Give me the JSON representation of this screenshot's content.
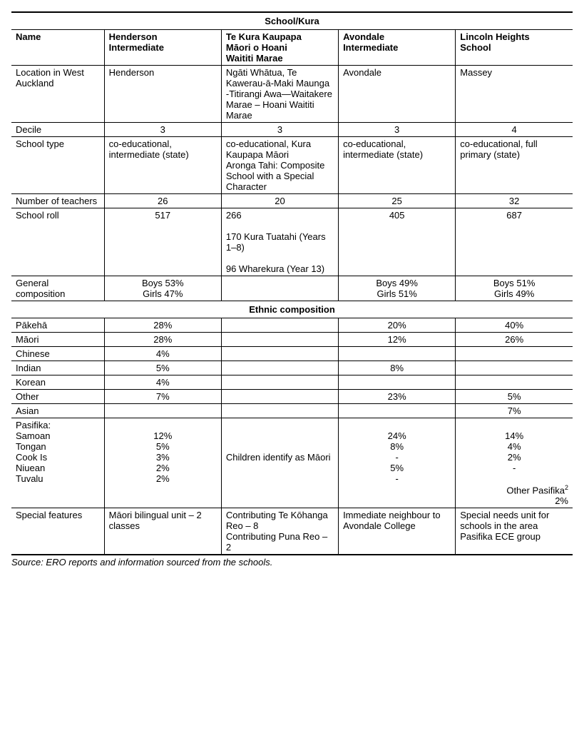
{
  "tableTitle": "School/Kura",
  "headers": {
    "name": "Name",
    "cols": [
      "Henderson\nIntermediate",
      "Te Kura Kaupapa\nMāori o Hoani\nWaititi Marae",
      "Avondale\nIntermediate",
      "Lincoln Heights\nSchool"
    ]
  },
  "rows": {
    "location_label": "Location in West Auckland",
    "location": [
      "Henderson",
      "Ngāti Whātua, Te Kawerau-ā-Maki Maunga  -Titirangi Awa—Waitakere Marae – Hoani Waititi Marae",
      "Avondale",
      "Massey"
    ],
    "decile_label": "Decile",
    "decile": [
      "3",
      "3",
      "3",
      "4"
    ],
    "schooltype_label": "School type",
    "schooltype": [
      "co-educational, intermediate (state)",
      "co-educational, Kura Kaupapa Māori\nAronga Tahi: Composite School with a Special Character",
      "co-educational, intermediate (state)",
      "co-educational, full primary (state)"
    ],
    "teachers_label": "Number of teachers",
    "teachers": [
      "26",
      "20",
      "25",
      "32"
    ],
    "roll_label": "School roll",
    "roll": [
      "517",
      "266\n\n170 Kura Tuatahi (Years 1–8)\n\n96 Wharekura (Year 13)",
      "405",
      "687"
    ],
    "gencomp_label": "General composition",
    "gencomp": [
      "Boys 53%\nGirls 47%",
      "",
      "Boys 49%\nGirls 51%",
      "Boys 51%\nGirls 49%"
    ]
  },
  "ethnicHeader": "Ethnic composition",
  "ethnic": {
    "pakeha_label": "Pākehā",
    "pakeha": [
      "28%",
      "",
      "20%",
      "40%"
    ],
    "maori_label": "Māori",
    "maori": [
      "28%",
      "",
      "12%",
      "26%"
    ],
    "chinese_label": "Chinese",
    "chinese": [
      "4%",
      "",
      "",
      ""
    ],
    "indian_label": "Indian",
    "indian": [
      "5%",
      "",
      "8%",
      ""
    ],
    "korean_label": "Korean",
    "korean": [
      "4%",
      "",
      "",
      ""
    ],
    "other_label": "Other",
    "other": [
      "7%",
      "",
      "23%",
      "5%"
    ],
    "asian_label": "Asian",
    "asian": [
      "",
      "",
      "",
      "7%"
    ],
    "pasifika_label": "Pasifika:",
    "samoan_label": "Samoan",
    "samoan": [
      "12%",
      "Children identify as Māori",
      "24%",
      "14%"
    ],
    "tongan_label": "Tongan",
    "tongan": [
      "5%",
      "",
      "8%",
      "4%"
    ],
    "cookis_label": "Cook Is",
    "cookis": [
      "3%",
      "",
      "-",
      "2%"
    ],
    "niuean_label": "Niuean",
    "niuean": [
      "2%",
      "",
      "5%",
      "-"
    ],
    "tuvalu_label": "Tuvalu",
    "tuvalu": [
      "2%",
      "",
      "-",
      ""
    ],
    "otherpasifika_note": "Other Pasifika",
    "otherpasifika_val": "2%"
  },
  "special": {
    "label": "Special features",
    "vals": [
      "Māori bilingual unit – 2 classes",
      "Contributing Te Kōhanga Reo – 8\nContributing Puna Reo – 2",
      "Immediate neighbour to Avondale College",
      "Special needs unit for schools in the area\nPasifika ECE group"
    ]
  },
  "source": "Source: ERO reports and information sourced from the schools."
}
